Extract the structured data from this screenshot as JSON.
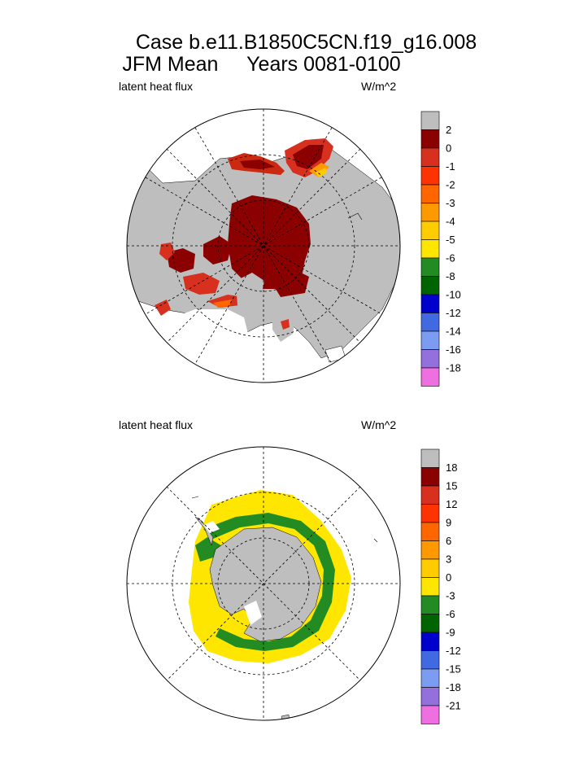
{
  "title_line1": "Case b.e11.B1850C5CN.f19_g16.008",
  "title_line2_left": "JFM Mean",
  "title_line2_right": "Years 0081-0100",
  "panels": [
    {
      "name": "north",
      "left_label": "latent heat flux",
      "right_label": "W/m^2",
      "legend": {
        "labels": [
          "2",
          "0",
          "-1",
          "-2",
          "-3",
          "-4",
          "-5",
          "-6",
          "-8",
          "-10",
          "-12",
          "-14",
          "-16",
          "-18"
        ],
        "colors": [
          "#bebebe",
          "#8b0000",
          "#d7301f",
          "#ff3300",
          "#ff6600",
          "#ff9900",
          "#ffcc00",
          "#ffe600",
          "#228b22",
          "#006400",
          "#0000cd",
          "#4169e1",
          "#7b9cf0",
          "#9370db",
          "#ee6fe0"
        ]
      }
    },
    {
      "name": "south",
      "left_label": "latent heat flux",
      "right_label": "W/m^2",
      "legend": {
        "labels": [
          "18",
          "15",
          "12",
          "9",
          "6",
          "3",
          "0",
          "-3",
          "-6",
          "-9",
          "-12",
          "-15",
          "-18",
          "-21"
        ],
        "colors": [
          "#bebebe",
          "#8b0000",
          "#d7301f",
          "#ff3300",
          "#ff6600",
          "#ff9900",
          "#ffcc00",
          "#ffe600",
          "#228b22",
          "#006400",
          "#0000cd",
          "#4169e1",
          "#7b9cf0",
          "#9370db",
          "#ee6fe0"
        ]
      }
    }
  ]
}
